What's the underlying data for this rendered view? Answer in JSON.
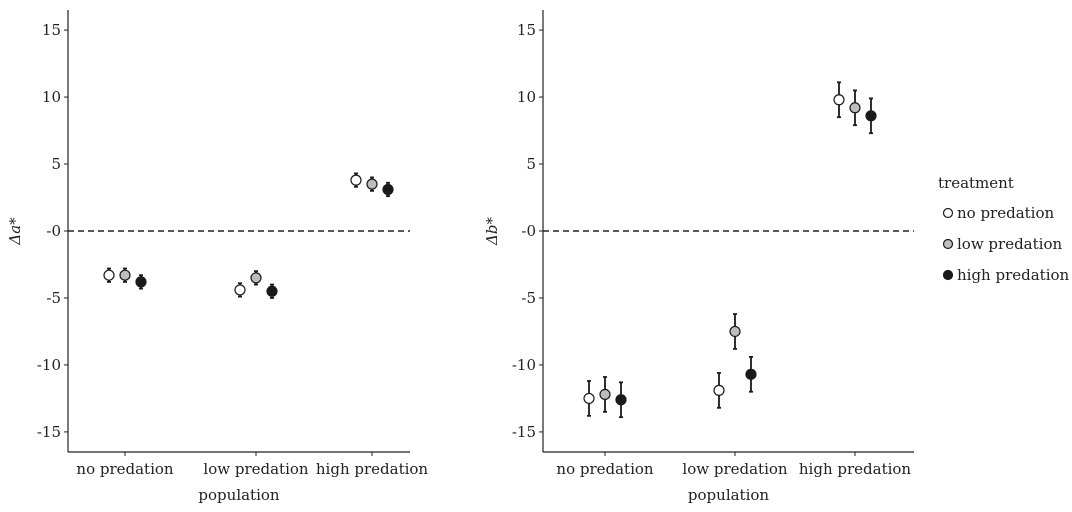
{
  "chart_data": [
    {
      "type": "scatter",
      "ylabel": "Δa*",
      "xlabel": "population",
      "categories": [
        "no predation",
        "low predation",
        "high predation"
      ],
      "ylim": [
        -16.5,
        16.5
      ],
      "yticks": [
        15,
        10,
        5,
        0,
        -5,
        -10,
        -15
      ],
      "ytick_labels": [
        "15",
        "10",
        "5",
        "-0",
        "-5",
        "-10",
        "-15"
      ],
      "reference_line": 0,
      "series": [
        {
          "name": "no predation",
          "values": [
            -3.3,
            -4.4,
            3.8
          ],
          "err_low": [
            -3.8,
            -4.9,
            3.3
          ],
          "err_high": [
            -2.8,
            -3.9,
            4.3
          ]
        },
        {
          "name": "low predation",
          "values": [
            -3.3,
            -3.5,
            3.5
          ],
          "err_low": [
            -3.8,
            -4.0,
            3.0
          ],
          "err_high": [
            -2.8,
            -3.0,
            4.0
          ]
        },
        {
          "name": "high predation",
          "values": [
            -3.8,
            -4.5,
            3.1
          ],
          "err_low": [
            -4.3,
            -5.0,
            2.6
          ],
          "err_high": [
            -3.3,
            -4.0,
            3.6
          ]
        }
      ]
    },
    {
      "type": "scatter",
      "ylabel": "Δb*",
      "xlabel": "population",
      "categories": [
        "no predation",
        "low predation",
        "high predation"
      ],
      "ylim": [
        -16.5,
        16.5
      ],
      "yticks": [
        15,
        10,
        5,
        0,
        -5,
        -10,
        -15
      ],
      "ytick_labels": [
        "15",
        "10",
        "5",
        "-0",
        "-5",
        "-10",
        "-15"
      ],
      "reference_line": 0,
      "series": [
        {
          "name": "no predation",
          "values": [
            -12.5,
            -11.9,
            9.8
          ],
          "err_low": [
            -13.8,
            -13.2,
            8.5
          ],
          "err_high": [
            -11.2,
            -10.6,
            11.1
          ]
        },
        {
          "name": "low predation",
          "values": [
            -12.2,
            -7.5,
            9.2
          ],
          "err_low": [
            -13.5,
            -8.8,
            7.9
          ],
          "err_high": [
            -10.9,
            -6.2,
            10.5
          ]
        },
        {
          "name": "high predation",
          "values": [
            -12.6,
            -10.7,
            8.6
          ],
          "err_low": [
            -13.9,
            -12.0,
            7.3
          ],
          "err_high": [
            -11.3,
            -9.4,
            9.9
          ]
        }
      ]
    }
  ],
  "legend": {
    "title": "treatment",
    "items": [
      "no predation",
      "low predation",
      "high predation"
    ]
  },
  "colors": {
    "no_predation_fill": "#ffffff",
    "low_predation_fill": "#bdbdbd",
    "high_predation_fill": "#1a1a1a",
    "stroke": "#1a1a1a"
  }
}
